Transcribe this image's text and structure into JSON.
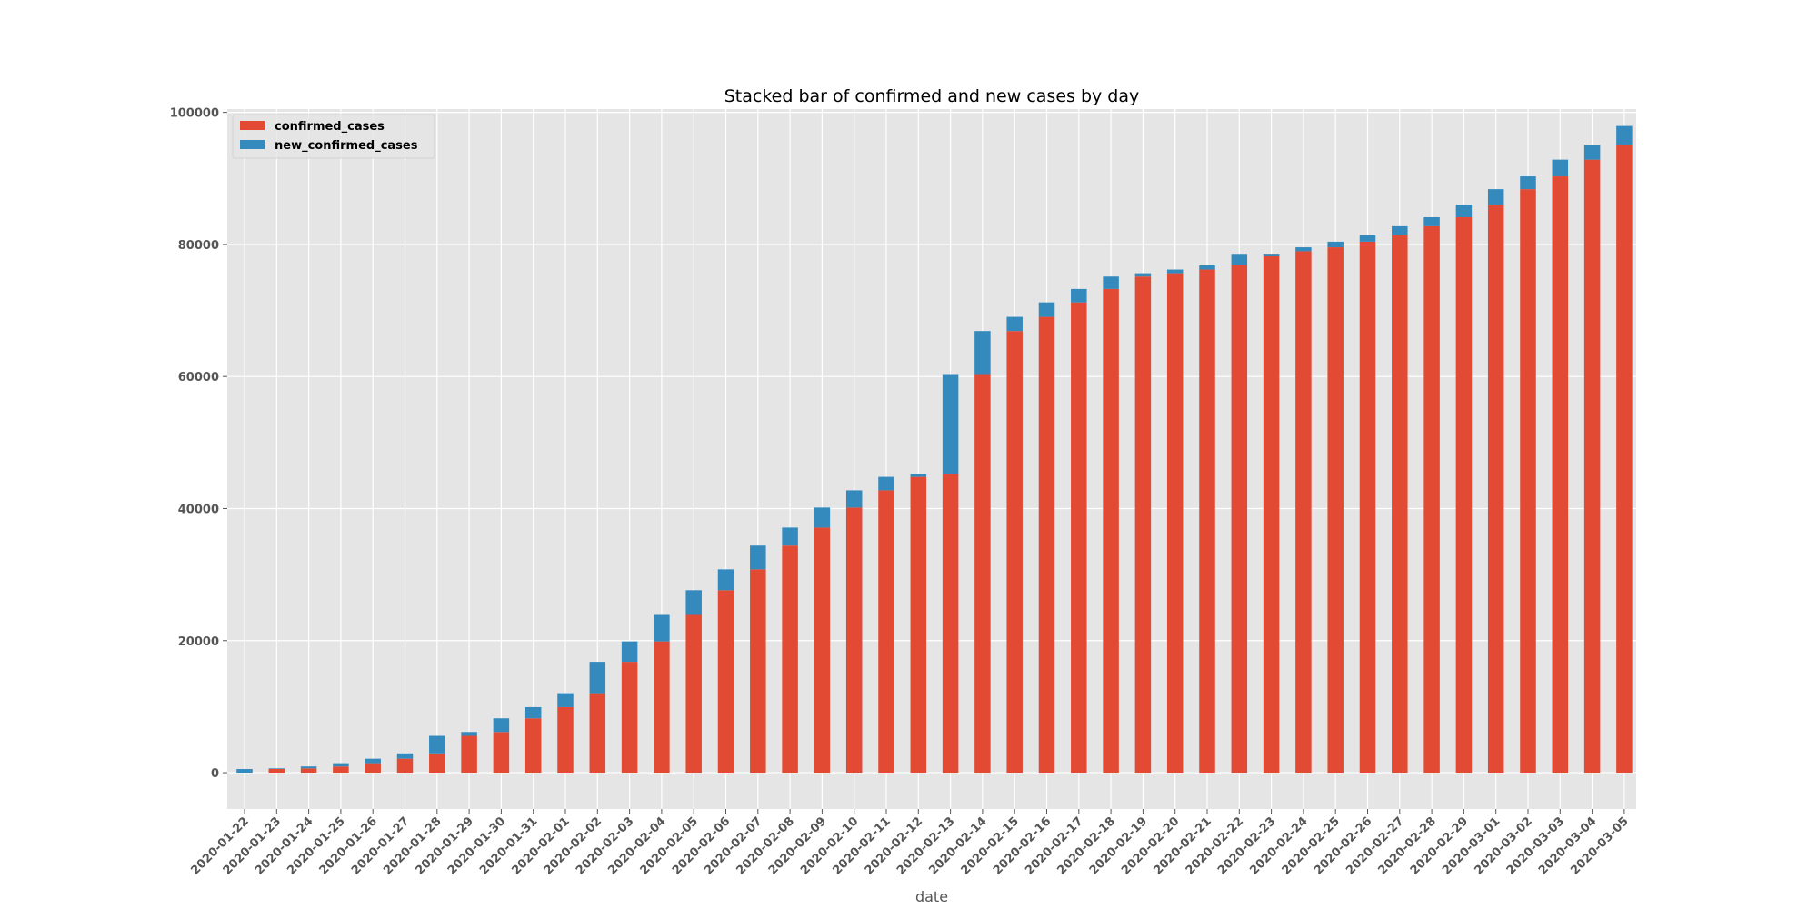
{
  "chart_data": {
    "type": "bar",
    "stacked": true,
    "title": "Stacked bar of confirmed and new cases by day",
    "xlabel": "date",
    "ylabel": "",
    "ylim": [
      -5500,
      100500
    ],
    "yticks": [
      0,
      20000,
      40000,
      60000,
      80000,
      100000
    ],
    "ytick_labels": [
      "0",
      "20000",
      "40000",
      "60000",
      "80000",
      "100000"
    ],
    "grid": true,
    "legend_position": "top-left",
    "categories": [
      "2020-01-22",
      "2020-01-23",
      "2020-01-24",
      "2020-01-25",
      "2020-01-26",
      "2020-01-27",
      "2020-01-28",
      "2020-01-29",
      "2020-01-30",
      "2020-01-31",
      "2020-02-01",
      "2020-02-02",
      "2020-02-03",
      "2020-02-04",
      "2020-02-05",
      "2020-02-06",
      "2020-02-07",
      "2020-02-08",
      "2020-02-09",
      "2020-02-10",
      "2020-02-11",
      "2020-02-12",
      "2020-02-13",
      "2020-02-14",
      "2020-02-15",
      "2020-02-16",
      "2020-02-17",
      "2020-02-18",
      "2020-02-19",
      "2020-02-20",
      "2020-02-21",
      "2020-02-22",
      "2020-02-23",
      "2020-02-24",
      "2020-02-25",
      "2020-02-26",
      "2020-02-27",
      "2020-02-28",
      "2020-02-29",
      "2020-03-01",
      "2020-03-02",
      "2020-03-03",
      "2020-03-04",
      "2020-03-05"
    ],
    "series": [
      {
        "name": "confirmed_cases",
        "color": "#E24A33",
        "values": [
          0,
          555,
          653,
          941,
          1438,
          2118,
          2927,
          5578,
          6165,
          8235,
          9925,
          12038,
          16787,
          19881,
          23892,
          27635,
          30794,
          34391,
          37120,
          40150,
          42762,
          44802,
          45221,
          60368,
          66885,
          69030,
          71224,
          73258,
          75136,
          75639,
          76197,
          76823,
          78579,
          78965,
          79568,
          80413,
          81395,
          82754,
          84120,
          86011,
          88369,
          90306,
          92840,
          95120
        ]
      },
      {
        "name": "new_confirmed_cases",
        "color": "#348ABD",
        "values": [
          555,
          98,
          288,
          497,
          680,
          809,
          2651,
          587,
          2070,
          1690,
          2113,
          4749,
          3094,
          4011,
          3743,
          3159,
          3597,
          2729,
          3030,
          2612,
          2040,
          419,
          15147,
          6517,
          2145,
          2194,
          2034,
          1878,
          503,
          558,
          626,
          1756,
          -386,
          603,
          845,
          982,
          1359,
          1366,
          1891,
          2358,
          1937,
          2534,
          2280,
          2820
        ]
      }
    ]
  }
}
